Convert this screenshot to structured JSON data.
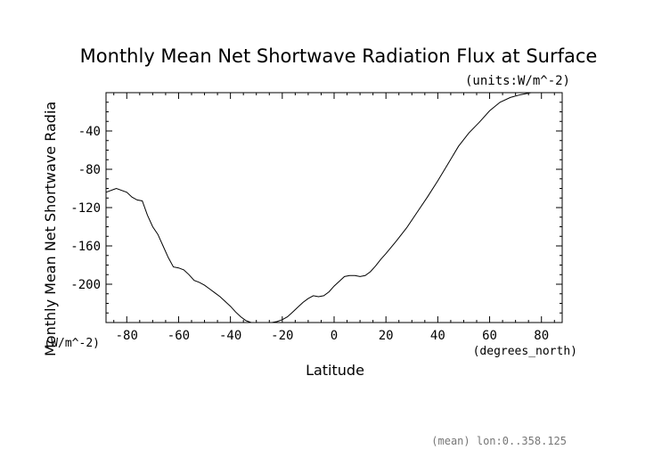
{
  "chart_data": {
    "type": "line",
    "title": "Monthly Mean Net Shortwave Radiation Flux at Surface",
    "units_label": "(units:W/m^-2)",
    "xlabel": "Latitude",
    "x_units": "(degrees_north)",
    "ylabel": "Monthly Mean Net Shortwave Radia",
    "y_units": "(W/m^-2)",
    "footer": "(mean) lon:0..358.125",
    "xlim": [
      -88,
      88
    ],
    "ylim": [
      -240,
      0
    ],
    "x_ticks": [
      -80,
      -60,
      -40,
      -20,
      0,
      20,
      40,
      60,
      80
    ],
    "y_ticks": [
      -40,
      -80,
      -120,
      -160,
      -200
    ],
    "grid": false,
    "series": [
      {
        "x": [
          -88,
          -84,
          -80,
          -78,
          -76,
          -74,
          -72,
          -70,
          -68,
          -66,
          -64,
          -62,
          -60,
          -58,
          -56,
          -54,
          -52,
          -50,
          -48,
          -46,
          -44,
          -42,
          -40,
          -38,
          -36,
          -34,
          -32,
          -30,
          -28,
          -26,
          -24,
          -22,
          -20,
          -18,
          -16,
          -14,
          -12,
          -10,
          -8,
          -6,
          -4,
          -2,
          0,
          2,
          4,
          6,
          8,
          10,
          12,
          14,
          16,
          18,
          20,
          24,
          28,
          32,
          36,
          40,
          44,
          48,
          52,
          56,
          60,
          64,
          68,
          72,
          76,
          80,
          84,
          88
        ],
        "y": [
          -104,
          -100,
          -104,
          -109,
          -112,
          -113,
          -128,
          -140,
          -148,
          -160,
          -172,
          -182,
          -183,
          -185,
          -190,
          -196,
          -198,
          -201,
          -205,
          -209,
          -213,
          -218,
          -223,
          -229,
          -234,
          -238,
          -240,
          -240,
          -240,
          -240,
          -240,
          -239,
          -237,
          -234,
          -229,
          -224,
          -219,
          -215,
          -212,
          -213,
          -212,
          -208,
          -202,
          -197,
          -192,
          -191,
          -191,
          -192,
          -191,
          -187,
          -181,
          -174,
          -168,
          -155,
          -141,
          -125,
          -109,
          -92,
          -74,
          -56,
          -42,
          -31,
          -19,
          -10,
          -5,
          -2,
          0,
          0,
          0,
          0
        ]
      }
    ]
  }
}
